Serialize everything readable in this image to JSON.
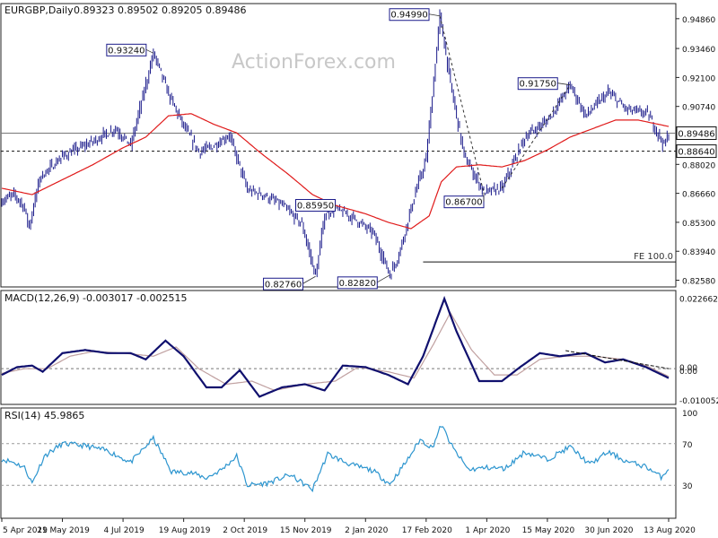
{
  "colors": {
    "price_bars": "#1a1a8a",
    "ma_line": "#e01b1b",
    "macd_line": "#10106e",
    "signal_line": "#c0a0a0",
    "rsi_line": "#2c95cf",
    "level_line": "#777777",
    "label_box_border": "#1a1a8a"
  },
  "chart_data": [
    {
      "type": "ohlc",
      "title": "EURGBP,Daily",
      "ohlc_readout": "0.89323 0.89502 0.89205 0.89486",
      "watermark": "ActionForex.com",
      "x_tick_labels": [
        "5 Apr 2019",
        "21 May 2019",
        "4 Jul 2019",
        "19 Aug 2019",
        "2 Oct 2019",
        "15 Nov 2019",
        "2 Jan 2020",
        "17 Feb 2020",
        "1 Apr 2020",
        "15 May 2020",
        "30 Jun 2020",
        "13 Aug 2020"
      ],
      "y_ticks": [
        "0.94860",
        "0.93460",
        "0.92100",
        "0.90740",
        "0.89380",
        "0.88020",
        "0.86660",
        "0.85300",
        "0.83940",
        "0.82580"
      ],
      "ylim": [
        0.8235,
        0.954
      ],
      "last_price_label": "0.89486",
      "last_price": 0.89486,
      "horizontal_level_label": "0.88640",
      "horizontal_level": 0.8864,
      "fe_level_label": "FE 100.0",
      "fe_level": 0.8344,
      "price_path": [
        {
          "i": 0,
          "p": 0.863
        },
        {
          "i": 8,
          "p": 0.866
        },
        {
          "i": 14,
          "p": 0.861
        },
        {
          "i": 18,
          "p": 0.851
        },
        {
          "i": 25,
          "p": 0.874
        },
        {
          "i": 40,
          "p": 0.884
        },
        {
          "i": 60,
          "p": 0.891
        },
        {
          "i": 75,
          "p": 0.897
        },
        {
          "i": 85,
          "p": 0.889
        },
        {
          "i": 100,
          "p": 0.9324
        },
        {
          "i": 110,
          "p": 0.913
        },
        {
          "i": 120,
          "p": 0.898
        },
        {
          "i": 130,
          "p": 0.886
        },
        {
          "i": 140,
          "p": 0.889
        },
        {
          "i": 150,
          "p": 0.894
        },
        {
          "i": 162,
          "p": 0.868
        },
        {
          "i": 172,
          "p": 0.866
        },
        {
          "i": 185,
          "p": 0.861
        },
        {
          "i": 198,
          "p": 0.852
        },
        {
          "i": 207,
          "p": 0.8276
        },
        {
          "i": 213,
          "p": 0.8565
        },
        {
          "i": 220,
          "p": 0.8595
        },
        {
          "i": 232,
          "p": 0.855
        },
        {
          "i": 245,
          "p": 0.848
        },
        {
          "i": 256,
          "p": 0.8282
        },
        {
          "i": 262,
          "p": 0.838
        },
        {
          "i": 272,
          "p": 0.865
        },
        {
          "i": 280,
          "p": 0.883
        },
        {
          "i": 289,
          "p": 0.9499
        },
        {
          "i": 296,
          "p": 0.918
        },
        {
          "i": 305,
          "p": 0.884
        },
        {
          "i": 318,
          "p": 0.867
        },
        {
          "i": 330,
          "p": 0.869
        },
        {
          "i": 345,
          "p": 0.893
        },
        {
          "i": 360,
          "p": 0.901
        },
        {
          "i": 375,
          "p": 0.9175
        },
        {
          "i": 385,
          "p": 0.903
        },
        {
          "i": 400,
          "p": 0.914
        },
        {
          "i": 412,
          "p": 0.906
        },
        {
          "i": 426,
          "p": 0.904
        },
        {
          "i": 437,
          "p": 0.889
        },
        {
          "i": 440,
          "p": 0.8949
        }
      ],
      "ma_path": [
        {
          "i": 0,
          "p": 0.869
        },
        {
          "i": 20,
          "p": 0.866
        },
        {
          "i": 40,
          "p": 0.873
        },
        {
          "i": 60,
          "p": 0.88
        },
        {
          "i": 80,
          "p": 0.888
        },
        {
          "i": 95,
          "p": 0.893
        },
        {
          "i": 110,
          "p": 0.903
        },
        {
          "i": 125,
          "p": 0.904
        },
        {
          "i": 140,
          "p": 0.899
        },
        {
          "i": 155,
          "p": 0.895
        },
        {
          "i": 170,
          "p": 0.886
        },
        {
          "i": 190,
          "p": 0.875
        },
        {
          "i": 205,
          "p": 0.866
        },
        {
          "i": 220,
          "p": 0.861
        },
        {
          "i": 240,
          "p": 0.857
        },
        {
          "i": 255,
          "p": 0.853
        },
        {
          "i": 270,
          "p": 0.85
        },
        {
          "i": 282,
          "p": 0.856
        },
        {
          "i": 290,
          "p": 0.872
        },
        {
          "i": 300,
          "p": 0.879
        },
        {
          "i": 315,
          "p": 0.88
        },
        {
          "i": 330,
          "p": 0.879
        },
        {
          "i": 345,
          "p": 0.882
        },
        {
          "i": 360,
          "p": 0.887
        },
        {
          "i": 375,
          "p": 0.893
        },
        {
          "i": 390,
          "p": 0.897
        },
        {
          "i": 405,
          "p": 0.901
        },
        {
          "i": 420,
          "p": 0.901
        },
        {
          "i": 440,
          "p": 0.898
        }
      ],
      "price_labels": [
        {
          "text": "0.93240",
          "i": 100,
          "p": 0.9324
        },
        {
          "text": "0.94990",
          "i": 289,
          "p": 0.9499
        },
        {
          "text": "0.91750",
          "i": 375,
          "p": 0.9175
        },
        {
          "text": "0.85950",
          "i": 220,
          "p": 0.8595
        },
        {
          "text": "0.86700",
          "i": 318,
          "p": 0.867
        },
        {
          "text": "0.82760",
          "i": 207,
          "p": 0.8276
        },
        {
          "text": "0.82820",
          "i": 256,
          "p": 0.8282
        }
      ],
      "trendlines": [
        {
          "from": {
            "i": 289,
            "p": 0.9499
          },
          "to": {
            "i": 318,
            "p": 0.867
          }
        },
        {
          "from": {
            "i": 330,
            "p": 0.869
          },
          "to": {
            "i": 375,
            "p": 0.9175
          }
        }
      ]
    },
    {
      "type": "line",
      "title": "MACD(12,26,9) -0.003017 -0.002515",
      "y_ticks": [
        "0.022662",
        "0.00",
        "0.00",
        "-0.010052"
      ],
      "ylim": [
        -0.0112,
        0.0234
      ],
      "macd": [
        {
          "i": 0,
          "v": -0.002
        },
        {
          "i": 10,
          "v": 0.0005
        },
        {
          "i": 20,
          "v": 0.001
        },
        {
          "i": 27,
          "v": -0.001
        },
        {
          "i": 40,
          "v": 0.005
        },
        {
          "i": 55,
          "v": 0.006
        },
        {
          "i": 70,
          "v": 0.005
        },
        {
          "i": 85,
          "v": 0.005
        },
        {
          "i": 95,
          "v": 0.003
        },
        {
          "i": 108,
          "v": 0.009
        },
        {
          "i": 120,
          "v": 0.004
        },
        {
          "i": 135,
          "v": -0.006
        },
        {
          "i": 145,
          "v": -0.006
        },
        {
          "i": 157,
          "v": -0.0005
        },
        {
          "i": 170,
          "v": -0.009
        },
        {
          "i": 185,
          "v": -0.006
        },
        {
          "i": 200,
          "v": -0.005
        },
        {
          "i": 213,
          "v": -0.007
        },
        {
          "i": 225,
          "v": 0.001
        },
        {
          "i": 240,
          "v": 0.0005
        },
        {
          "i": 255,
          "v": -0.002
        },
        {
          "i": 268,
          "v": -0.005
        },
        {
          "i": 278,
          "v": 0.004
        },
        {
          "i": 292,
          "v": 0.0225
        },
        {
          "i": 300,
          "v": 0.012
        },
        {
          "i": 315,
          "v": -0.004
        },
        {
          "i": 330,
          "v": -0.004
        },
        {
          "i": 342,
          "v": 0.0005
        },
        {
          "i": 355,
          "v": 0.005
        },
        {
          "i": 368,
          "v": 0.004
        },
        {
          "i": 385,
          "v": 0.005
        },
        {
          "i": 398,
          "v": 0.002
        },
        {
          "i": 410,
          "v": 0.003
        },
        {
          "i": 425,
          "v": 0.0005
        },
        {
          "i": 440,
          "v": -0.003
        }
      ],
      "signal": [
        {
          "i": 0,
          "v": -0.0015
        },
        {
          "i": 15,
          "v": 0.0
        },
        {
          "i": 30,
          "v": 0.0
        },
        {
          "i": 45,
          "v": 0.004
        },
        {
          "i": 60,
          "v": 0.0055
        },
        {
          "i": 80,
          "v": 0.005
        },
        {
          "i": 100,
          "v": 0.004
        },
        {
          "i": 115,
          "v": 0.007
        },
        {
          "i": 130,
          "v": 0.0
        },
        {
          "i": 148,
          "v": -0.005
        },
        {
          "i": 165,
          "v": -0.004
        },
        {
          "i": 180,
          "v": -0.007
        },
        {
          "i": 200,
          "v": -0.005
        },
        {
          "i": 220,
          "v": -0.004
        },
        {
          "i": 235,
          "v": 0.0005
        },
        {
          "i": 255,
          "v": -0.001
        },
        {
          "i": 272,
          "v": -0.003
        },
        {
          "i": 285,
          "v": 0.008
        },
        {
          "i": 296,
          "v": 0.018
        },
        {
          "i": 310,
          "v": 0.006
        },
        {
          "i": 325,
          "v": -0.002
        },
        {
          "i": 340,
          "v": -0.002
        },
        {
          "i": 355,
          "v": 0.003
        },
        {
          "i": 372,
          "v": 0.004
        },
        {
          "i": 390,
          "v": 0.004
        },
        {
          "i": 410,
          "v": 0.003
        },
        {
          "i": 425,
          "v": 0.001
        },
        {
          "i": 440,
          "v": -0.0025
        }
      ],
      "zero_level": 0.0,
      "trendline": {
        "from": {
          "i": 372,
          "v": 0.0058
        },
        "to": {
          "i": 440,
          "v": 0.0
        }
      }
    },
    {
      "type": "line",
      "title": "RSI(14) 45.9865",
      "y_ticks": [
        "100",
        "70",
        "30"
      ],
      "ylim": [
        0,
        100
      ],
      "levels": [
        70,
        30
      ],
      "rsi": [
        {
          "i": 0,
          "v": 55
        },
        {
          "i": 8,
          "v": 52
        },
        {
          "i": 15,
          "v": 47
        },
        {
          "i": 20,
          "v": 32
        },
        {
          "i": 28,
          "v": 58
        },
        {
          "i": 40,
          "v": 70
        },
        {
          "i": 55,
          "v": 68
        },
        {
          "i": 70,
          "v": 63
        },
        {
          "i": 85,
          "v": 52
        },
        {
          "i": 100,
          "v": 75
        },
        {
          "i": 112,
          "v": 43
        },
        {
          "i": 125,
          "v": 42
        },
        {
          "i": 135,
          "v": 37
        },
        {
          "i": 145,
          "v": 45
        },
        {
          "i": 155,
          "v": 58
        },
        {
          "i": 162,
          "v": 30
        },
        {
          "i": 175,
          "v": 32
        },
        {
          "i": 190,
          "v": 40
        },
        {
          "i": 205,
          "v": 26
        },
        {
          "i": 215,
          "v": 60
        },
        {
          "i": 230,
          "v": 50
        },
        {
          "i": 245,
          "v": 44
        },
        {
          "i": 256,
          "v": 31
        },
        {
          "i": 268,
          "v": 55
        },
        {
          "i": 276,
          "v": 74
        },
        {
          "i": 284,
          "v": 66
        },
        {
          "i": 290,
          "v": 88
        },
        {
          "i": 298,
          "v": 65
        },
        {
          "i": 308,
          "v": 45
        },
        {
          "i": 320,
          "v": 47
        },
        {
          "i": 332,
          "v": 46
        },
        {
          "i": 345,
          "v": 62
        },
        {
          "i": 360,
          "v": 55
        },
        {
          "i": 375,
          "v": 67
        },
        {
          "i": 388,
          "v": 50
        },
        {
          "i": 400,
          "v": 62
        },
        {
          "i": 412,
          "v": 53
        },
        {
          "i": 425,
          "v": 48
        },
        {
          "i": 435,
          "v": 38
        },
        {
          "i": 440,
          "v": 46
        }
      ]
    }
  ]
}
